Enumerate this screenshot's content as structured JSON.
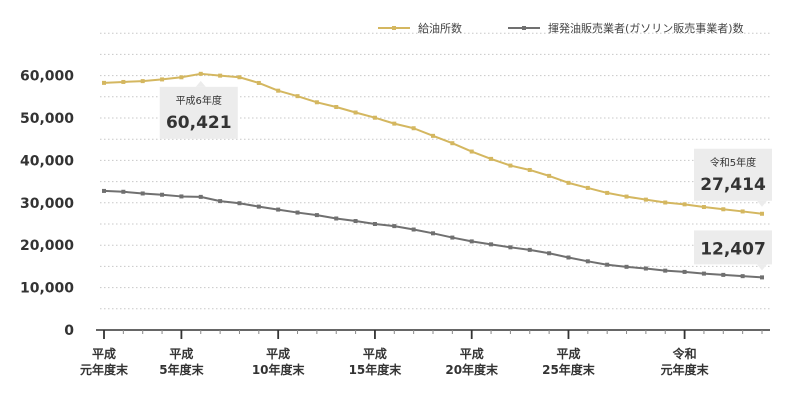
{
  "chart_data": {
    "type": "line",
    "title": "",
    "xlabel": "",
    "ylabel": "",
    "ylim": [
      0,
      70000
    ],
    "grid": true,
    "legend_position": "top-right",
    "y_ticks": [
      0,
      10000,
      20000,
      30000,
      40000,
      50000,
      60000
    ],
    "y_tick_labels": [
      "0",
      "10,000",
      "20,000",
      "30,000",
      "40,000",
      "50,000",
      "60,000"
    ],
    "x_tick_labels": [
      {
        "index": 0,
        "lines": [
          "平成",
          "元年度末"
        ]
      },
      {
        "index": 4,
        "lines": [
          "平成",
          "5年度末"
        ]
      },
      {
        "index": 9,
        "lines": [
          "平成",
          "10年度末"
        ]
      },
      {
        "index": 14,
        "lines": [
          "平成",
          "15年度末"
        ]
      },
      {
        "index": 19,
        "lines": [
          "平成",
          "20年度末"
        ]
      },
      {
        "index": 24,
        "lines": [
          "平成",
          "25年度末"
        ]
      },
      {
        "index": 30,
        "lines": [
          "令和",
          "元年度末"
        ]
      }
    ],
    "x_count": 35,
    "series": [
      {
        "name": "給油所数",
        "color": "#d4b760",
        "values": [
          58285,
          58500,
          58700,
          59100,
          59600,
          60421,
          59990,
          59615,
          58263,
          56444,
          55153,
          53704,
          52592,
          51294,
          50067,
          48672,
          47584,
          45792,
          44057,
          42090,
          40357,
          38777,
          37743,
          36349,
          34706,
          33510,
          32333,
          31467,
          30747,
          30070,
          29637,
          29005,
          28475,
          27963,
          27414
        ]
      },
      {
        "name": "揮発油販売業者(ガソリン販売事業者)数",
        "color": "#707070",
        "values": [
          32800,
          32600,
          32200,
          31900,
          31500,
          31400,
          30400,
          29900,
          29100,
          28400,
          27700,
          27100,
          26300,
          25700,
          25000,
          24500,
          23700,
          22800,
          21800,
          20900,
          20200,
          19500,
          18900,
          18100,
          17100,
          16200,
          15400,
          14900,
          14500,
          14000,
          13700,
          13300,
          13000,
          12700,
          12407
        ]
      }
    ],
    "callouts": [
      {
        "series": 0,
        "index": 5,
        "label": "平成6年度",
        "value": "60,421"
      },
      {
        "series": 0,
        "index": 34,
        "label": "令和5年度",
        "value": "27,414"
      },
      {
        "series": 1,
        "index": 34,
        "label": "",
        "value": "12,407"
      }
    ]
  }
}
